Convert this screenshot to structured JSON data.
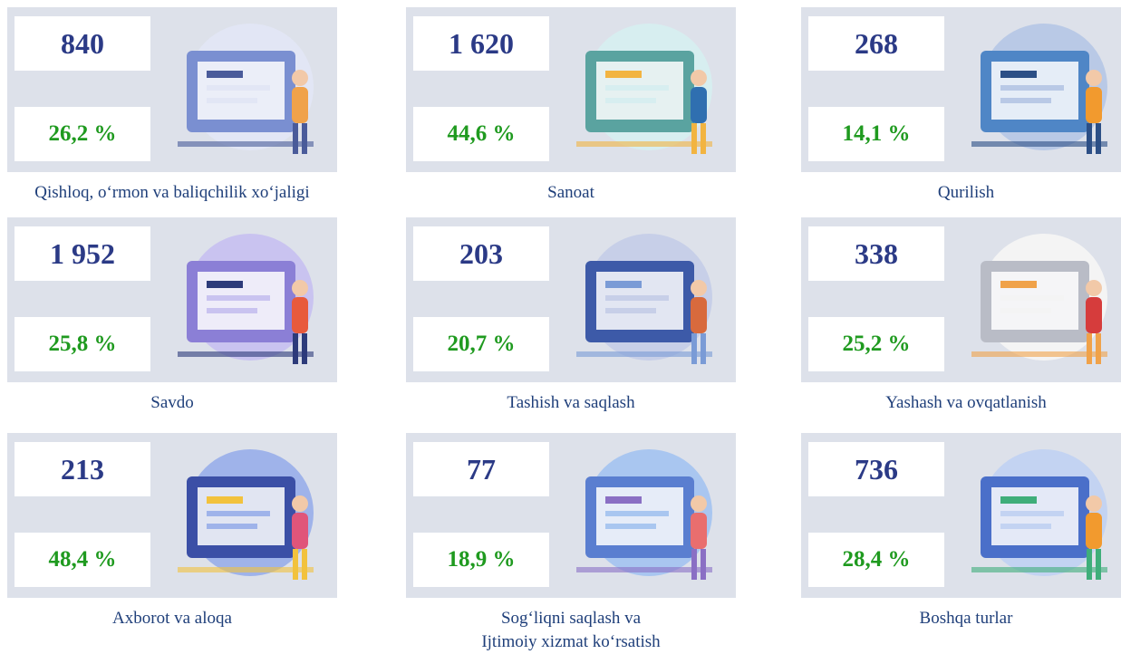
{
  "cards": [
    {
      "value": "840",
      "percent": "26,2 %",
      "label_lines": [
        "Qishloq, o‘rmon va baliqchilik xo‘jaligi"
      ]
    },
    {
      "value": "1 620",
      "percent": "44,6 %",
      "label_lines": [
        "Sanoat"
      ]
    },
    {
      "value": "268",
      "percent": "14,1 %",
      "label_lines": [
        "Qurilish"
      ]
    },
    {
      "value": "1 952",
      "percent": "25,8 %",
      "label_lines": [
        "Savdo"
      ]
    },
    {
      "value": "203",
      "percent": "20,7 %",
      "label_lines": [
        "Tashish va saqlash"
      ]
    },
    {
      "value": "338",
      "percent": "25,2 %",
      "label_lines": [
        "Yashash va ovqatlanish"
      ]
    },
    {
      "value": "213",
      "percent": "48,4 %",
      "label_lines": [
        "Axborot va aloqa"
      ]
    },
    {
      "value": "77",
      "percent": "18,9 %",
      "label_lines": [
        "Sog‘liqni saqlash va",
        "Ijtimoiy xizmat ko‘rsatish"
      ]
    },
    {
      "value": "736",
      "percent": "28,4 %",
      "label_lines": [
        "Boshqa turlar"
      ]
    }
  ]
}
